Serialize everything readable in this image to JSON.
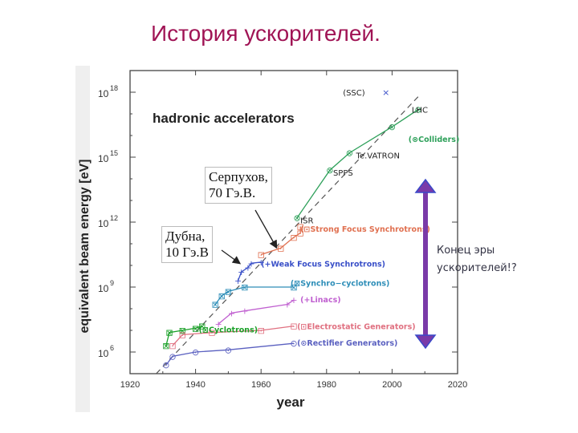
{
  "slide": {
    "title": "История ускорителей.",
    "note_line1": "Конец эры",
    "note_line2": "ускорителей!?",
    "callout_serpukhov": [
      "Серпухов,",
      "70 Гэ.В."
    ],
    "callout_dubna": [
      "Дубна,",
      "10 Гэ.В"
    ]
  },
  "colors": {
    "title": "#a01455",
    "arrow": "#7a3aa8",
    "arrow_head": "#3a49c9",
    "series_colliders": "#2ea05a",
    "series_strong": "#e07050",
    "series_weak": "#3a50c8",
    "series_synchro": "#2e8eb8",
    "series_linacs": "#c060d0",
    "series_cyclotrons": "#1aa028",
    "series_electrostatic": "#e07080",
    "series_rectifier": "#5a60c0"
  },
  "chart_data": {
    "type": "line",
    "title": "hadronic accelerators",
    "xlabel": "year",
    "ylabel": "equivalent beam energy [eV]",
    "xlim": [
      1920,
      2020
    ],
    "ylim_log10": [
      5,
      19
    ],
    "x_ticks": [
      "1920",
      "1940",
      "1960",
      "1980",
      "2000",
      "2020"
    ],
    "y_ticks": [
      {
        "value": 6,
        "label": "10",
        "exp": "6"
      },
      {
        "value": 9,
        "label": "10",
        "exp": "9"
      },
      {
        "value": 12,
        "label": "10",
        "exp": "12"
      },
      {
        "value": 15,
        "label": "10",
        "exp": "15"
      },
      {
        "value": 18,
        "label": "10",
        "exp": "18"
      }
    ],
    "trend_line": [
      [
        1928,
        5.0
      ],
      [
        2008,
        17.8
      ]
    ],
    "series": [
      {
        "name": "(⊗Colliders)",
        "key": "colliders",
        "marker": "⊗",
        "label_at": [
          2005,
          15.85
        ],
        "points": [
          [
            1971,
            12.2
          ],
          [
            1981,
            14.4
          ],
          [
            1987,
            15.2
          ],
          [
            2000,
            16.4
          ],
          [
            2008,
            17.2
          ]
        ]
      },
      {
        "name": "(⊡Strong Focus Synchrotrons)",
        "key": "strong",
        "marker": "⊡",
        "label_at": [
          1972,
          11.7
        ],
        "points": [
          [
            1960,
            10.5
          ],
          [
            1966,
            10.8
          ],
          [
            1970,
            11.3
          ],
          [
            1972,
            11.5
          ],
          [
            1972,
            11.8
          ]
        ]
      },
      {
        "name": "(+Weak Focus Synchrotrons)",
        "key": "weak",
        "marker": "+",
        "label_at": [
          1960,
          10.1
        ],
        "points": [
          [
            1953,
            9.3
          ],
          [
            1954,
            9.7
          ],
          [
            1956,
            9.9
          ],
          [
            1957,
            10.1
          ],
          [
            1960,
            10.15
          ]
        ]
      },
      {
        "name": "(⊠Synchro−cyclotrons)",
        "key": "synchro",
        "marker": "⊠",
        "label_at": [
          1969,
          9.2
        ],
        "points": [
          [
            1946,
            8.2
          ],
          [
            1948,
            8.6
          ],
          [
            1950,
            8.8
          ],
          [
            1955,
            9.0
          ],
          [
            1970,
            9.0
          ]
        ]
      },
      {
        "name": "(+Linacs)",
        "key": "linacs",
        "marker": "+",
        "label_at": [
          1972,
          8.45
        ],
        "points": [
          [
            1947,
            7.3
          ],
          [
            1951,
            7.8
          ],
          [
            1955,
            7.9
          ],
          [
            1968,
            8.2
          ],
          [
            1970,
            8.4
          ]
        ]
      },
      {
        "name": "(⊠Cyclotrons)",
        "key": "cyclotrons",
        "marker": "⊠",
        "label_at": [
          1941,
          7.05
        ],
        "points": [
          [
            1931,
            6.3
          ],
          [
            1932,
            6.9
          ],
          [
            1936,
            7.0
          ],
          [
            1940,
            7.1
          ],
          [
            1942,
            7.2
          ]
        ]
      },
      {
        "name": "(⊡Electrostatic Generators)",
        "key": "electrostatic",
        "marker": "⊡",
        "label_at": [
          1971,
          7.2
        ],
        "points": [
          [
            1933,
            6.3
          ],
          [
            1936,
            6.8
          ],
          [
            1945,
            6.9
          ],
          [
            1960,
            7.0
          ],
          [
            1970,
            7.2
          ]
        ]
      },
      {
        "name": "(⊙Rectifier Generators)",
        "key": "rectifier",
        "marker": "⊙",
        "label_at": [
          1971,
          6.45
        ],
        "points": [
          [
            1931,
            5.4
          ],
          [
            1933,
            5.8
          ],
          [
            1940,
            6.0
          ],
          [
            1950,
            6.1
          ],
          [
            1970,
            6.4
          ]
        ]
      }
    ],
    "annotations": [
      {
        "text": "(SSC)",
        "at": [
          1985,
          18.0
        ]
      },
      {
        "text": "LHC",
        "at": [
          2006,
          17.2
        ]
      },
      {
        "text": "Te.VATRON",
        "at": [
          1989,
          15.1
        ]
      },
      {
        "text": "SPPS",
        "at": [
          1982,
          14.3
        ]
      },
      {
        "text": "ISR",
        "at": [
          1972,
          12.1
        ]
      }
    ],
    "ssc_marker": {
      "at": [
        1997,
        18.0
      ],
      "symbol": "×"
    }
  }
}
